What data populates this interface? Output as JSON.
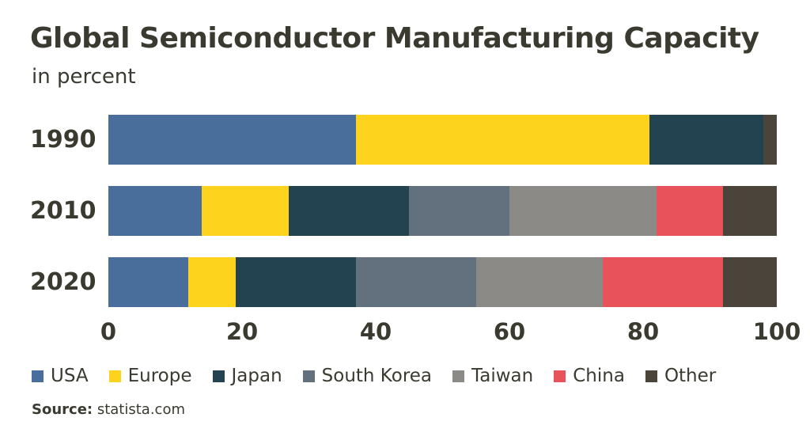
{
  "chart_data": {
    "type": "bar",
    "orientation": "horizontal",
    "stacked": true,
    "title": "Global Semiconductor Manufacturing Capacity",
    "subtitle": "in percent",
    "categories": [
      "1990",
      "2010",
      "2020"
    ],
    "series": [
      {
        "name": "USA",
        "color": "#4a6e9c",
        "values": [
          37,
          14,
          12
        ]
      },
      {
        "name": "Europe",
        "color": "#fdd31d",
        "values": [
          44,
          13,
          7
        ]
      },
      {
        "name": "Japan",
        "color": "#234350",
        "values": [
          17,
          18,
          18
        ]
      },
      {
        "name": "South Korea",
        "color": "#63717f",
        "values": [
          0,
          15,
          18
        ]
      },
      {
        "name": "Taiwan",
        "color": "#8b8a86",
        "values": [
          0,
          22,
          19
        ]
      },
      {
        "name": "China",
        "color": "#e8525a",
        "values": [
          0,
          10,
          18
        ]
      },
      {
        "name": "Other",
        "color": "#4a443a",
        "values": [
          2,
          8,
          8
        ]
      }
    ],
    "xlim": [
      0,
      100
    ],
    "xticks": [
      "0",
      "20",
      "40",
      "60",
      "80",
      "100"
    ],
    "xlabel": "",
    "ylabel": "",
    "grid": false,
    "legend_position": "bottom"
  },
  "source": {
    "label": "Source:",
    "text": "statista.com"
  }
}
